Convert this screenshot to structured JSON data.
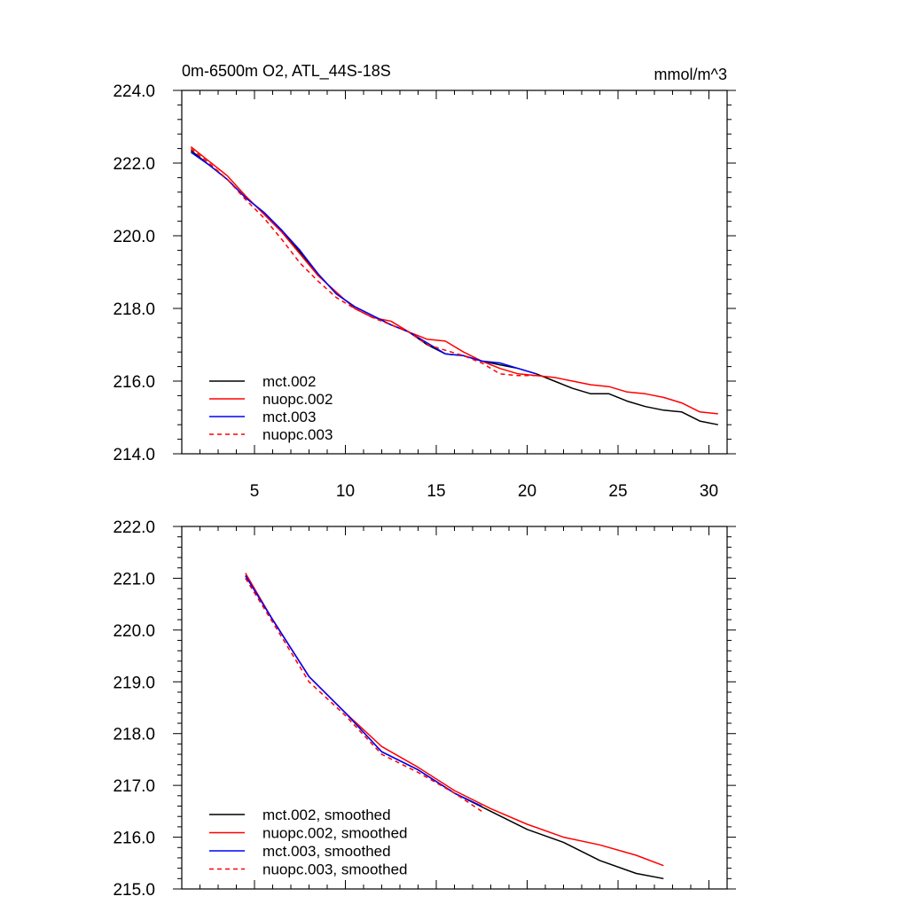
{
  "chart_data": [
    {
      "type": "line",
      "title": "0m-6500m O2, ATL_44S-18S",
      "units": "mmol/m^3",
      "xlim": [
        1,
        31
      ],
      "ylim": [
        214,
        224
      ],
      "x_ticks": [
        5,
        10,
        15,
        20,
        25,
        30
      ],
      "x_tick_labels": [
        "5",
        "10",
        "15",
        "20",
        "25",
        "30"
      ],
      "y_ticks": [
        214,
        216,
        218,
        220,
        222,
        224
      ],
      "y_tick_labels": [
        "214.0",
        "216.0",
        "218.0",
        "220.0",
        "222.0",
        "224.0"
      ],
      "legend_position": "bottom-left",
      "series": [
        {
          "name": "mct.002",
          "color": "#000000",
          "dash": "solid",
          "x": [
            1.5,
            2.5,
            3.5,
            4.5,
            5.5,
            6.5,
            7.5,
            8.5,
            9.5,
            10.5,
            11.5,
            12.5,
            13.5,
            14.5,
            15.5,
            16.5,
            17.5,
            18.5,
            19.5,
            20.5,
            21.5,
            22.5,
            23.5,
            24.5,
            25.5,
            26.5,
            27.5,
            28.5,
            29.5,
            30.5
          ],
          "y": [
            222.35,
            221.95,
            221.55,
            221.05,
            220.65,
            220.15,
            219.55,
            218.95,
            218.4,
            218.05,
            217.8,
            217.55,
            217.35,
            217.0,
            216.75,
            216.7,
            216.55,
            216.45,
            216.35,
            216.2,
            216.0,
            215.8,
            215.65,
            215.65,
            215.45,
            215.3,
            215.2,
            215.15,
            214.9,
            214.8
          ]
        },
        {
          "name": "nuopc.002",
          "color": "#ff0000",
          "dash": "solid",
          "x": [
            1.5,
            2.5,
            3.5,
            4.5,
            5.5,
            6.5,
            7.5,
            8.5,
            9.5,
            10.5,
            11.5,
            12.5,
            13.5,
            14.5,
            15.5,
            16.5,
            17.5,
            18.5,
            19.5,
            20.5,
            21.5,
            22.5,
            23.5,
            24.5,
            25.5,
            26.5,
            27.5,
            28.5,
            29.5,
            30.5
          ],
          "y": [
            222.45,
            222.05,
            221.65,
            221.1,
            220.6,
            220.1,
            219.5,
            218.9,
            218.45,
            218.0,
            217.75,
            217.65,
            217.35,
            217.15,
            217.1,
            216.8,
            216.55,
            216.35,
            216.2,
            216.15,
            216.1,
            216.0,
            215.9,
            215.85,
            215.7,
            215.65,
            215.55,
            215.4,
            215.15,
            215.1
          ]
        },
        {
          "name": "mct.003",
          "color": "#0000ff",
          "dash": "solid",
          "x": [
            1.5,
            2.5,
            3.5,
            4.5,
            5.5,
            6.5,
            7.5,
            8.5,
            9.5,
            10.5,
            11.5,
            12.5,
            13.5,
            14.5,
            15.5,
            16.5,
            17.5,
            18.5,
            19.5,
            20.5
          ],
          "y": [
            222.3,
            221.95,
            221.55,
            221.05,
            220.65,
            220.15,
            219.6,
            218.95,
            218.4,
            218.05,
            217.8,
            217.55,
            217.35,
            217.05,
            216.75,
            216.7,
            216.55,
            216.5,
            216.35,
            216.2
          ]
        },
        {
          "name": "nuopc.003",
          "color": "#ff0000",
          "dash": "dashed",
          "x": [
            1.5,
            2.5,
            3.5,
            4.5,
            5.5,
            6.5,
            7.5,
            8.5,
            9.5,
            10.5,
            11.5,
            12.5,
            13.5,
            14.5,
            15.5,
            16.5,
            17.5,
            18.5,
            19.5,
            20.5
          ],
          "y": [
            222.4,
            222.0,
            221.55,
            221.0,
            220.5,
            219.9,
            219.25,
            218.75,
            218.3,
            218.0,
            217.75,
            217.55,
            217.35,
            217.0,
            216.85,
            216.7,
            216.5,
            216.2,
            216.15,
            216.15
          ]
        }
      ]
    },
    {
      "type": "line",
      "xlim": [
        1,
        31
      ],
      "ylim": [
        215,
        222
      ],
      "x_ticks": [
        5,
        10,
        15,
        20,
        25,
        30
      ],
      "y_ticks": [
        215,
        216,
        217,
        218,
        219,
        220,
        221,
        222
      ],
      "y_tick_labels": [
        "215.0",
        "216.0",
        "217.0",
        "218.0",
        "219.0",
        "220.0",
        "221.0",
        "222.0"
      ],
      "legend_position": "bottom-left",
      "series": [
        {
          "name": "mct.002, smoothed",
          "color": "#000000",
          "dash": "solid",
          "x": [
            4.5,
            6,
            8,
            10,
            12,
            14,
            16,
            18,
            20,
            22,
            24,
            26,
            27.5
          ],
          "y": [
            221.05,
            220.2,
            219.1,
            218.4,
            217.65,
            217.3,
            216.85,
            216.5,
            216.15,
            215.9,
            215.55,
            215.3,
            215.2
          ]
        },
        {
          "name": "nuopc.002, smoothed",
          "color": "#ff0000",
          "dash": "solid",
          "x": [
            4.5,
            6,
            8,
            10,
            12,
            14,
            16,
            18,
            20,
            22,
            24,
            26,
            27.5
          ],
          "y": [
            221.1,
            220.2,
            219.1,
            218.4,
            217.75,
            217.35,
            216.9,
            216.55,
            216.25,
            216.0,
            215.85,
            215.65,
            215.45
          ]
        },
        {
          "name": "mct.003, smoothed",
          "color": "#0000ff",
          "dash": "solid",
          "x": [
            4.5,
            6,
            8,
            10,
            12,
            14,
            16,
            17.5
          ],
          "y": [
            221.05,
            220.2,
            219.1,
            218.4,
            217.65,
            217.3,
            216.85,
            216.6
          ]
        },
        {
          "name": "nuopc.003, smoothed",
          "color": "#ff0000",
          "dash": "dashed",
          "x": [
            4.5,
            6,
            8,
            10,
            12,
            14,
            16,
            17.5
          ],
          "y": [
            221.0,
            220.15,
            219.0,
            218.35,
            217.6,
            217.25,
            216.85,
            216.5
          ]
        }
      ]
    }
  ]
}
